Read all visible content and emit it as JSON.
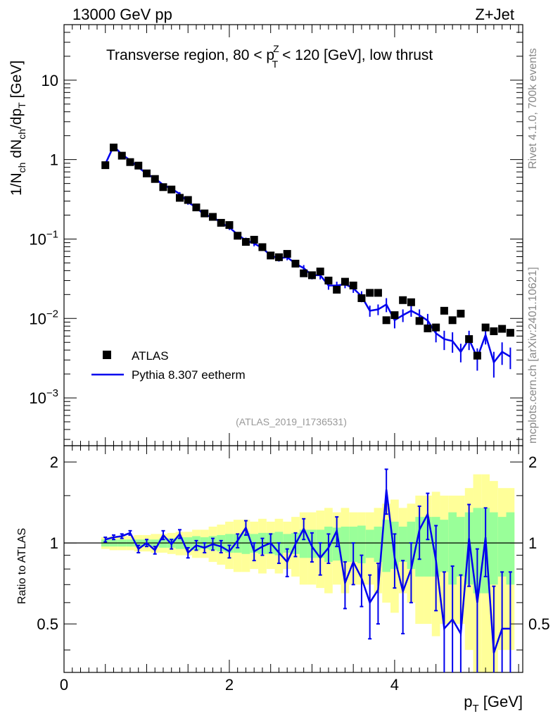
{
  "header": {
    "energy_label": "13000 GeV pp",
    "process_label": "Z+Jet",
    "title_prefix": "Transverse region, 80 < p",
    "title_sup": "Z",
    "title_sub": "T",
    "title_suffix": " < 120 [GeV], low thrust"
  },
  "side_labels": {
    "rivet": "Rivet 4.1.0,  700k events",
    "mcplots": "mcplots.cern.ch [arXiv:2401.10621]"
  },
  "analysis_ref": "(ATLAS_2019_I1736531)",
  "legend": {
    "data_label": "ATLAS",
    "mc_label": "Pythia 8.307 eetherm"
  },
  "axes": {
    "y_main_label": "1/N_ch dN_ch/dp_T [GeV]",
    "y_ratio_label": "Ratio to ATLAS",
    "x_label": "p_T [GeV]"
  },
  "colors": {
    "mc_line": "#0000ee",
    "band_inner": "#99ff99",
    "band_outer": "#ffff99",
    "data_marker": "#000000"
  },
  "chart_data": {
    "type": "scatter",
    "title": "Transverse region, 80 < pT^Z < 120 [GeV], low thrust",
    "xlabel": "p_T [GeV]",
    "ylabel": "1/N_ch dN_ch/dp_T [GeV]",
    "xlim": [
      0,
      5.55
    ],
    "ylim": [
      0.00025,
      50
    ],
    "y_scale": "log",
    "y_tick_labels": [
      "10^-3",
      "10^-2",
      "10^-1",
      "1",
      "10"
    ],
    "x_tick_labels": [
      "0",
      "2",
      "4"
    ],
    "ratio_ylim": [
      0.33,
      2.3
    ],
    "ratio_tick_labels": [
      "0.5",
      "1",
      "2"
    ],
    "x": [
      0.5,
      0.6,
      0.7,
      0.8,
      0.9,
      1.0,
      1.1,
      1.2,
      1.3,
      1.4,
      1.5,
      1.6,
      1.7,
      1.8,
      1.9,
      2.0,
      2.1,
      2.2,
      2.3,
      2.4,
      2.5,
      2.6,
      2.7,
      2.8,
      2.9,
      3.0,
      3.1,
      3.2,
      3.3,
      3.4,
      3.5,
      3.6,
      3.7,
      3.8,
      3.9,
      4.0,
      4.1,
      4.2,
      4.3,
      4.4,
      4.5,
      4.6,
      4.7,
      4.8,
      4.9,
      5.0,
      5.1,
      5.2,
      5.3,
      5.4
    ],
    "series": [
      {
        "name": "ATLAS",
        "values": [
          0.85,
          1.42,
          1.12,
          0.93,
          0.84,
          0.67,
          0.57,
          0.45,
          0.42,
          0.33,
          0.31,
          0.25,
          0.21,
          0.19,
          0.16,
          0.15,
          0.11,
          0.092,
          0.098,
          0.079,
          0.062,
          0.059,
          0.065,
          0.049,
          0.037,
          0.035,
          0.039,
          0.03,
          0.023,
          0.029,
          0.026,
          0.018,
          0.021,
          0.021,
          0.0095,
          0.011,
          0.017,
          0.016,
          0.0093,
          0.0075,
          0.0077,
          0.0125,
          0.0095,
          0.0115,
          0.0055,
          0.0034,
          0.0077,
          0.0069,
          0.0074,
          0.0066
        ]
      },
      {
        "name": "Pythia 8.307 eetherm",
        "values": [
          0.88,
          1.48,
          1.16,
          0.98,
          0.8,
          0.66,
          0.58,
          0.48,
          0.43,
          0.37,
          0.29,
          0.25,
          0.2,
          0.19,
          0.16,
          0.14,
          0.114,
          0.096,
          0.088,
          0.077,
          0.062,
          0.057,
          0.059,
          0.049,
          0.043,
          0.035,
          0.035,
          0.026,
          0.026,
          0.027,
          0.024,
          0.019,
          0.0125,
          0.013,
          0.015,
          0.0095,
          0.011,
          0.0125,
          0.011,
          0.0094,
          0.0065,
          0.0055,
          0.0052,
          0.0038,
          0.0055,
          0.0032,
          0.0062,
          0.0028,
          0.0038,
          0.0033
        ],
        "errors": [
          0.03,
          0.04,
          0.04,
          0.03,
          0.03,
          0.03,
          0.02,
          0.02,
          0.02,
          0.02,
          0.02,
          0.015,
          0.01,
          0.01,
          0.01,
          0.01,
          0.008,
          0.008,
          0.007,
          0.006,
          0.005,
          0.005,
          0.005,
          0.004,
          0.004,
          0.004,
          0.004,
          0.003,
          0.003,
          0.003,
          0.003,
          0.003,
          0.002,
          0.002,
          0.003,
          0.002,
          0.002,
          0.002,
          0.002,
          0.002,
          0.0015,
          0.0015,
          0.0015,
          0.001,
          0.0015,
          0.001,
          0.0015,
          0.001,
          0.0012,
          0.001
        ]
      }
    ],
    "ratio": {
      "values": [
        1.03,
        1.05,
        1.06,
        1.09,
        0.95,
        1.0,
        0.94,
        1.07,
        0.99,
        1.08,
        0.92,
        0.98,
        0.96,
        0.99,
        0.97,
        0.93,
        1.02,
        1.14,
        0.93,
        0.97,
        1.0,
        0.92,
        0.85,
        0.99,
        1.13,
        0.97,
        0.88,
        0.96,
        1.11,
        0.71,
        0.85,
        0.74,
        0.6,
        0.67,
        1.58,
        0.88,
        0.66,
        0.8,
        1.12,
        1.28,
        0.86,
        0.48,
        0.52,
        0.46,
        1.04,
        0.6,
        1.05,
        0.39,
        0.48,
        0.48
      ],
      "errors": [
        0.02,
        0.02,
        0.02,
        0.02,
        0.03,
        0.03,
        0.03,
        0.04,
        0.04,
        0.04,
        0.04,
        0.04,
        0.04,
        0.05,
        0.05,
        0.05,
        0.06,
        0.07,
        0.07,
        0.07,
        0.08,
        0.08,
        0.1,
        0.1,
        0.1,
        0.12,
        0.12,
        0.12,
        0.14,
        0.14,
        0.15,
        0.16,
        0.16,
        0.17,
        0.3,
        0.2,
        0.2,
        0.2,
        0.25,
        0.25,
        0.3,
        0.3,
        0.3,
        0.3,
        0.35,
        0.35,
        0.3,
        0.3,
        0.3,
        0.3
      ],
      "band_inner": [
        0.03,
        0.03,
        0.03,
        0.03,
        0.03,
        0.03,
        0.03,
        0.04,
        0.04,
        0.05,
        0.05,
        0.06,
        0.05,
        0.06,
        0.07,
        0.08,
        0.08,
        0.09,
        0.08,
        0.09,
        0.09,
        0.1,
        0.08,
        0.09,
        0.12,
        0.12,
        0.12,
        0.15,
        0.14,
        0.15,
        0.15,
        0.16,
        0.12,
        0.15,
        0.22,
        0.2,
        0.15,
        0.2,
        0.25,
        0.25,
        0.25,
        0.22,
        0.3,
        0.25,
        0.3,
        0.35,
        0.35,
        0.3,
        0.25,
        0.3
      ],
      "band_outer": [
        0.05,
        0.06,
        0.06,
        0.06,
        0.07,
        0.07,
        0.08,
        0.08,
        0.09,
        0.1,
        0.1,
        0.12,
        0.12,
        0.15,
        0.17,
        0.2,
        0.22,
        0.22,
        0.2,
        0.23,
        0.2,
        0.23,
        0.2,
        0.25,
        0.3,
        0.3,
        0.32,
        0.35,
        0.3,
        0.35,
        0.3,
        0.3,
        0.3,
        0.35,
        0.4,
        0.45,
        0.35,
        0.4,
        0.5,
        0.5,
        0.55,
        0.5,
        0.5,
        0.5,
        0.6,
        0.8,
        0.8,
        0.7,
        0.6,
        0.6
      ]
    },
    "legend_position": "lower-left"
  }
}
